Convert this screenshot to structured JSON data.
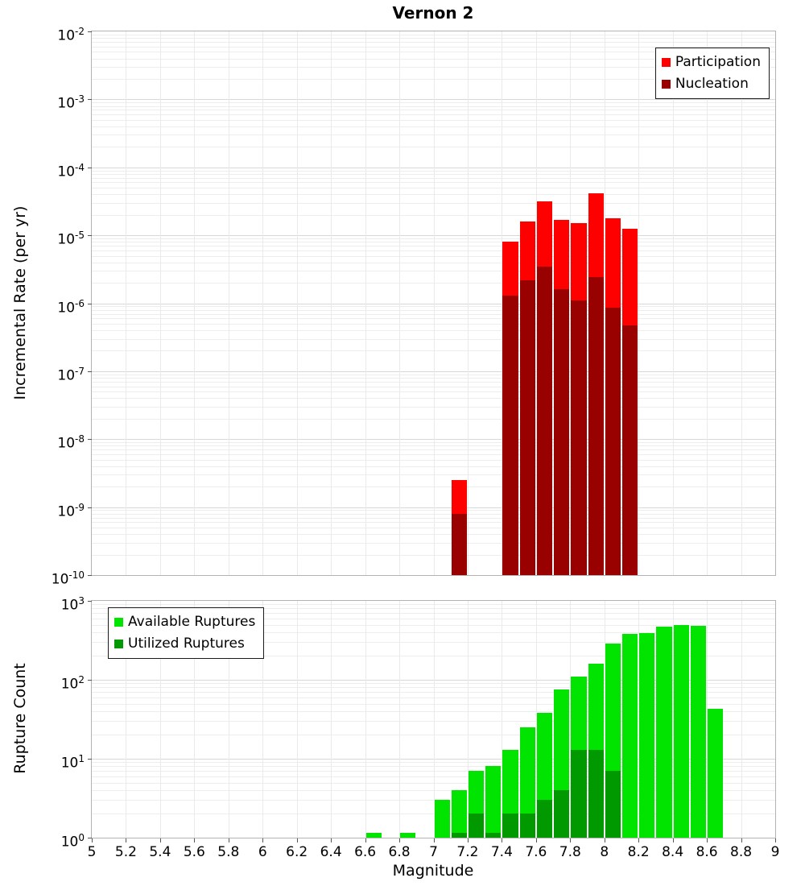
{
  "title": "Vernon 2",
  "chart_data": [
    {
      "type": "bar",
      "title": "Vernon 2",
      "ylabel": "Incremental Rate (per yr)",
      "xlabel": "",
      "y_scale": "log",
      "x_scale": "linear",
      "ylim": [
        1e-10,
        0.01
      ],
      "xlim": [
        5,
        9
      ],
      "bin_width": 0.1,
      "grid": true,
      "legend_position": "top-right",
      "xticks": [
        5,
        5.2,
        5.4,
        5.6,
        5.8,
        6,
        6.2,
        6.4,
        6.6,
        6.8,
        7,
        7.2,
        7.4,
        7.6,
        7.8,
        8,
        8.2,
        8.4,
        8.6,
        8.8,
        9
      ],
      "xtick_labels": null,
      "series": [
        {
          "name": "Participation",
          "color": "#ff0000",
          "x": [
            7.15,
            7.45,
            7.55,
            7.65,
            7.75,
            7.85,
            7.95,
            8.05,
            8.15
          ],
          "values": [
            2.5e-09,
            8e-06,
            1.6e-05,
            3.2e-05,
            1.7e-05,
            1.5e-05,
            4.2e-05,
            1.8e-05,
            1.25e-05
          ]
        },
        {
          "name": "Nucleation",
          "color": "#990000",
          "x": [
            7.15,
            7.45,
            7.55,
            7.65,
            7.75,
            7.85,
            7.95,
            8.05,
            8.15
          ],
          "values": [
            8e-10,
            1.3e-06,
            2.2e-06,
            3.5e-06,
            1.6e-06,
            1.1e-06,
            2.4e-06,
            8.5e-07,
            4.7e-07
          ]
        }
      ]
    },
    {
      "type": "bar",
      "title": "",
      "ylabel": "Rupture Count",
      "xlabel": "Magnitude",
      "y_scale": "log",
      "x_scale": "linear",
      "ylim": [
        1,
        1000
      ],
      "xlim": [
        5,
        9
      ],
      "bin_width": 0.1,
      "grid": true,
      "legend_position": "top-left",
      "xticks": [
        5,
        5.2,
        5.4,
        5.6,
        5.8,
        6,
        6.2,
        6.4,
        6.6,
        6.8,
        7,
        7.2,
        7.4,
        7.6,
        7.8,
        8,
        8.2,
        8.4,
        8.6,
        8.8,
        9
      ],
      "xtick_labels": [
        "5",
        "5.2",
        "5.4",
        "5.6",
        "5.8",
        "6",
        "6.2",
        "6.4",
        "6.6",
        "6.8",
        "7",
        "7.2",
        "7.4",
        "7.6",
        "7.8",
        "8",
        "8.2",
        "8.4",
        "8.6",
        "8.8",
        "9"
      ],
      "series": [
        {
          "name": "Available Ruptures",
          "color": "#00e400",
          "x": [
            6.65,
            6.85,
            7.05,
            7.15,
            7.25,
            7.35,
            7.45,
            7.55,
            7.65,
            7.75,
            7.85,
            7.95,
            8.05,
            8.15,
            8.25,
            8.35,
            8.45,
            8.55,
            8.65
          ],
          "values": [
            1,
            1,
            3,
            4,
            7,
            8,
            13,
            25,
            38,
            75,
            110,
            160,
            290,
            380,
            390,
            470,
            500,
            480,
            43
          ]
        },
        {
          "name": "Utilized Ruptures",
          "color": "#009900",
          "x": [
            7.15,
            7.25,
            7.35,
            7.45,
            7.55,
            7.65,
            7.75,
            7.85,
            7.95,
            8.05
          ],
          "values": [
            1,
            2,
            1,
            2,
            2,
            3,
            4,
            13,
            13,
            7
          ]
        }
      ]
    }
  ]
}
